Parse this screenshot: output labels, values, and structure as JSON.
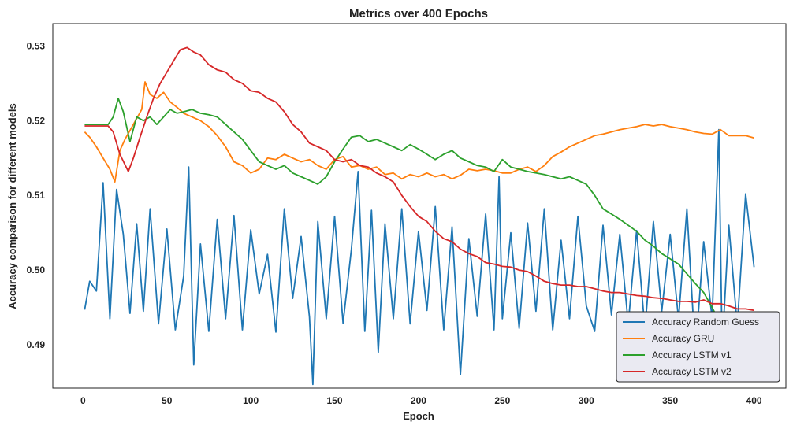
{
  "chart_data": {
    "type": "line",
    "title": "Metrics over 400 Epochs",
    "xlabel": "Epoch",
    "ylabel": "Accuracy comparison for different models",
    "xlim": [
      -18,
      419
    ],
    "ylim": [
      0.4842,
      0.533
    ],
    "xticks": [
      0,
      50,
      100,
      150,
      200,
      250,
      300,
      350,
      400
    ],
    "yticks": [
      0.49,
      0.5,
      0.51,
      0.52,
      0.53
    ],
    "ytick_labels": [
      "0.49",
      "0.50",
      "0.51",
      "0.52",
      "0.53"
    ],
    "grid": false,
    "legend_position": "lower-right",
    "series": [
      {
        "name": "Accuracy Random Guess",
        "color": "#1f77b4",
        "x": [
          1,
          4,
          8,
          12,
          16,
          20,
          24,
          28,
          32,
          36,
          40,
          45,
          50,
          55,
          60,
          63,
          66,
          70,
          75,
          80,
          85,
          90,
          95,
          100,
          105,
          110,
          115,
          120,
          125,
          130,
          135,
          137,
          140,
          145,
          150,
          155,
          160,
          164,
          168,
          172,
          176,
          180,
          185,
          190,
          195,
          200,
          205,
          210,
          215,
          220,
          225,
          230,
          235,
          240,
          245,
          248,
          250,
          255,
          260,
          265,
          270,
          275,
          280,
          285,
          290,
          295,
          300,
          305,
          310,
          315,
          320,
          325,
          330,
          335,
          340,
          345,
          350,
          355,
          360,
          365,
          370,
          375,
          379,
          381,
          385,
          390,
          395,
          400
        ],
        "y": [
          0.4947,
          0.4985,
          0.4972,
          0.5117,
          0.4935,
          0.5108,
          0.5048,
          0.4942,
          0.5062,
          0.4945,
          0.5082,
          0.4928,
          0.5055,
          0.492,
          0.4992,
          0.5138,
          0.4873,
          0.5035,
          0.4918,
          0.5068,
          0.4935,
          0.5073,
          0.492,
          0.5054,
          0.4968,
          0.5021,
          0.4917,
          0.5082,
          0.4962,
          0.5045,
          0.4937,
          0.4847,
          0.5065,
          0.4935,
          0.5072,
          0.4929,
          0.5028,
          0.5132,
          0.4918,
          0.508,
          0.489,
          0.5062,
          0.4935,
          0.5082,
          0.4928,
          0.5052,
          0.4946,
          0.5085,
          0.492,
          0.5058,
          0.486,
          0.5042,
          0.4938,
          0.5075,
          0.492,
          0.5125,
          0.4935,
          0.505,
          0.4922,
          0.5063,
          0.4945,
          0.5082,
          0.492,
          0.504,
          0.4935,
          0.5072,
          0.4952,
          0.4918,
          0.506,
          0.494,
          0.5048,
          0.4928,
          0.5053,
          0.492,
          0.5065,
          0.4945,
          0.5048,
          0.4934,
          0.5082,
          0.4888,
          0.5038,
          0.4935,
          0.5188,
          0.4895,
          0.506,
          0.4925,
          0.5102,
          0.5004
        ]
      },
      {
        "name": "Accuracy GRU",
        "color": "#ff7f0e",
        "x": [
          1,
          4,
          8,
          12,
          16,
          19,
          22,
          25,
          30,
          35,
          37,
          40,
          44,
          48,
          52,
          56,
          60,
          65,
          70,
          75,
          80,
          85,
          90,
          95,
          100,
          105,
          110,
          115,
          120,
          125,
          130,
          135,
          140,
          145,
          150,
          155,
          160,
          165,
          170,
          175,
          180,
          185,
          190,
          195,
          200,
          205,
          210,
          215,
          220,
          225,
          230,
          235,
          240,
          245,
          250,
          255,
          260,
          265,
          270,
          275,
          280,
          285,
          290,
          295,
          300,
          305,
          310,
          315,
          320,
          325,
          330,
          335,
          340,
          345,
          350,
          355,
          360,
          365,
          370,
          375,
          380,
          385,
          390,
          395,
          400
        ],
        "y": [
          0.5185,
          0.5178,
          0.5165,
          0.515,
          0.5135,
          0.5118,
          0.516,
          0.5175,
          0.5195,
          0.5215,
          0.5252,
          0.5235,
          0.523,
          0.5238,
          0.5225,
          0.5218,
          0.521,
          0.5205,
          0.52,
          0.5192,
          0.518,
          0.5165,
          0.5145,
          0.514,
          0.513,
          0.5135,
          0.515,
          0.5148,
          0.5155,
          0.515,
          0.5145,
          0.5148,
          0.514,
          0.5135,
          0.5148,
          0.5152,
          0.5138,
          0.514,
          0.5135,
          0.5138,
          0.5128,
          0.513,
          0.5122,
          0.5128,
          0.5125,
          0.513,
          0.5125,
          0.5128,
          0.5122,
          0.5127,
          0.5135,
          0.5133,
          0.5135,
          0.5133,
          0.513,
          0.513,
          0.5135,
          0.5138,
          0.5132,
          0.514,
          0.5152,
          0.5158,
          0.5165,
          0.517,
          0.5175,
          0.518,
          0.5182,
          0.5185,
          0.5188,
          0.519,
          0.5192,
          0.5195,
          0.5193,
          0.5195,
          0.5192,
          0.519,
          0.5188,
          0.5185,
          0.5183,
          0.5182,
          0.5188,
          0.518,
          0.518,
          0.518,
          0.5177
        ]
      },
      {
        "name": "Accuracy LSTM v1",
        "color": "#2ca02c",
        "x": [
          1,
          5,
          10,
          15,
          18,
          21,
          24,
          28,
          32,
          36,
          40,
          44,
          48,
          52,
          56,
          60,
          65,
          70,
          75,
          80,
          85,
          90,
          95,
          100,
          105,
          110,
          115,
          120,
          125,
          130,
          135,
          140,
          145,
          150,
          155,
          160,
          165,
          170,
          175,
          180,
          185,
          190,
          195,
          200,
          205,
          210,
          215,
          220,
          225,
          230,
          235,
          240,
          245,
          250,
          255,
          260,
          265,
          270,
          275,
          280,
          285,
          290,
          295,
          300,
          305,
          310,
          315,
          320,
          325,
          330,
          335,
          340,
          345,
          350,
          355,
          360,
          365,
          370,
          375,
          380,
          385,
          390,
          395,
          400
        ],
        "y": [
          0.5195,
          0.5195,
          0.5195,
          0.5195,
          0.5205,
          0.523,
          0.5212,
          0.5172,
          0.5205,
          0.52,
          0.5205,
          0.5195,
          0.5205,
          0.5215,
          0.521,
          0.5212,
          0.5215,
          0.521,
          0.5208,
          0.5205,
          0.5195,
          0.5185,
          0.5175,
          0.516,
          0.5145,
          0.514,
          0.5135,
          0.514,
          0.513,
          0.5125,
          0.512,
          0.5115,
          0.5125,
          0.5145,
          0.5162,
          0.5178,
          0.518,
          0.5172,
          0.5175,
          0.517,
          0.5165,
          0.516,
          0.5168,
          0.5162,
          0.5155,
          0.5148,
          0.5155,
          0.516,
          0.515,
          0.5145,
          0.514,
          0.5138,
          0.5132,
          0.5148,
          0.5138,
          0.5135,
          0.5132,
          0.513,
          0.5128,
          0.5125,
          0.5122,
          0.5125,
          0.512,
          0.5115,
          0.51,
          0.5082,
          0.5075,
          0.5068,
          0.506,
          0.5052,
          0.504,
          0.5032,
          0.5022,
          0.5015,
          0.5008,
          0.4995,
          0.4982,
          0.497,
          0.495,
          0.4928,
          0.492,
          0.4908,
          0.4902,
          0.4885
        ]
      },
      {
        "name": "Accuracy LSTM v2",
        "color": "#d62728",
        "x": [
          1,
          5,
          10,
          15,
          18,
          22,
          27,
          30,
          34,
          38,
          42,
          46,
          50,
          54,
          58,
          62,
          66,
          70,
          75,
          80,
          85,
          90,
          95,
          100,
          105,
          110,
          115,
          120,
          125,
          130,
          135,
          140,
          145,
          150,
          155,
          160,
          165,
          170,
          175,
          180,
          185,
          190,
          195,
          200,
          205,
          210,
          215,
          220,
          225,
          230,
          235,
          240,
          245,
          250,
          255,
          260,
          265,
          270,
          275,
          280,
          285,
          290,
          295,
          300,
          305,
          310,
          315,
          320,
          325,
          330,
          335,
          340,
          345,
          350,
          355,
          360,
          365,
          370,
          375,
          380,
          385,
          390,
          395,
          400
        ],
        "y": [
          0.5193,
          0.5193,
          0.5193,
          0.5193,
          0.5185,
          0.5155,
          0.5132,
          0.515,
          0.5178,
          0.5205,
          0.523,
          0.525,
          0.5265,
          0.528,
          0.5295,
          0.5298,
          0.5292,
          0.5288,
          0.5275,
          0.5268,
          0.5265,
          0.5255,
          0.525,
          0.524,
          0.5238,
          0.523,
          0.5225,
          0.5212,
          0.5195,
          0.5185,
          0.517,
          0.5165,
          0.516,
          0.5148,
          0.5145,
          0.5148,
          0.514,
          0.5138,
          0.513,
          0.5125,
          0.5118,
          0.51,
          0.5085,
          0.5072,
          0.5065,
          0.5052,
          0.5042,
          0.5038,
          0.5028,
          0.5022,
          0.5018,
          0.501,
          0.5008,
          0.5005,
          0.5004,
          0.5,
          0.4998,
          0.4992,
          0.4985,
          0.4982,
          0.498,
          0.498,
          0.4978,
          0.4978,
          0.4975,
          0.4972,
          0.497,
          0.497,
          0.4968,
          0.4966,
          0.4965,
          0.4963,
          0.4962,
          0.496,
          0.4958,
          0.4958,
          0.4957,
          0.496,
          0.4955,
          0.4955,
          0.4952,
          0.4948,
          0.4948,
          0.4946
        ]
      }
    ]
  }
}
